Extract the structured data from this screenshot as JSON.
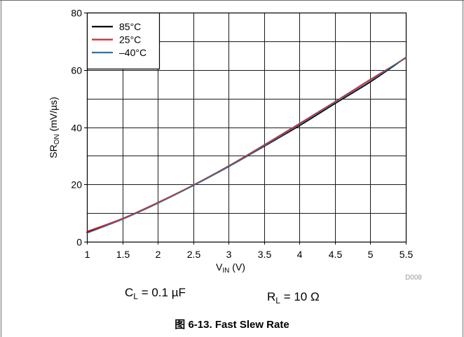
{
  "figure": {
    "caption": "图 6-13. Fast Slew Rate",
    "code_label": "D008",
    "conditions": [
      {
        "symbol": "C",
        "subscript": "L",
        "value": " = 0.1 µF"
      },
      {
        "symbol": "R",
        "subscript": "L",
        "value": " = 10 Ω"
      }
    ]
  },
  "chart_data": {
    "type": "line",
    "xlabel": {
      "symbol": "V",
      "subscript": "IN",
      "unit": " (V)"
    },
    "ylabel": {
      "symbol": "SR",
      "subscript": "ON",
      "unit": " (mV/µs)"
    },
    "xlim": [
      1,
      5.5
    ],
    "ylim": [
      0,
      80
    ],
    "xtick_labels": [
      "1",
      "1.5",
      "2",
      "2.5",
      "3",
      "3.5",
      "4",
      "4.5",
      "5",
      "5.5"
    ],
    "ytick_labels": [
      "0",
      "20",
      "40",
      "60",
      "80"
    ],
    "grid": true,
    "x_grid_step": 0.5,
    "y_grid_step": 10,
    "legend": {
      "position": "top-left"
    },
    "x": [
      1,
      1.5,
      2,
      2.5,
      3,
      3.5,
      4,
      4.5,
      5,
      5.5
    ],
    "series": [
      {
        "name": "85°C",
        "color": "#000000",
        "values": [
          3.3,
          7.9,
          13.5,
          19.6,
          26.2,
          33.3,
          40.5,
          48.2,
          55.8,
          64.3
        ]
      },
      {
        "name": "25°C",
        "color": "#e0202a",
        "values": [
          3.6,
          8.1,
          13.7,
          19.8,
          26.5,
          33.8,
          41.3,
          48.9,
          56.7,
          64.1
        ]
      },
      {
        "name": "–40°C",
        "color": "#3f6f8f",
        "values": [
          3.0,
          7.8,
          13.4,
          19.6,
          26.3,
          33.5,
          40.9,
          48.6,
          56.2,
          64.4
        ]
      }
    ]
  }
}
